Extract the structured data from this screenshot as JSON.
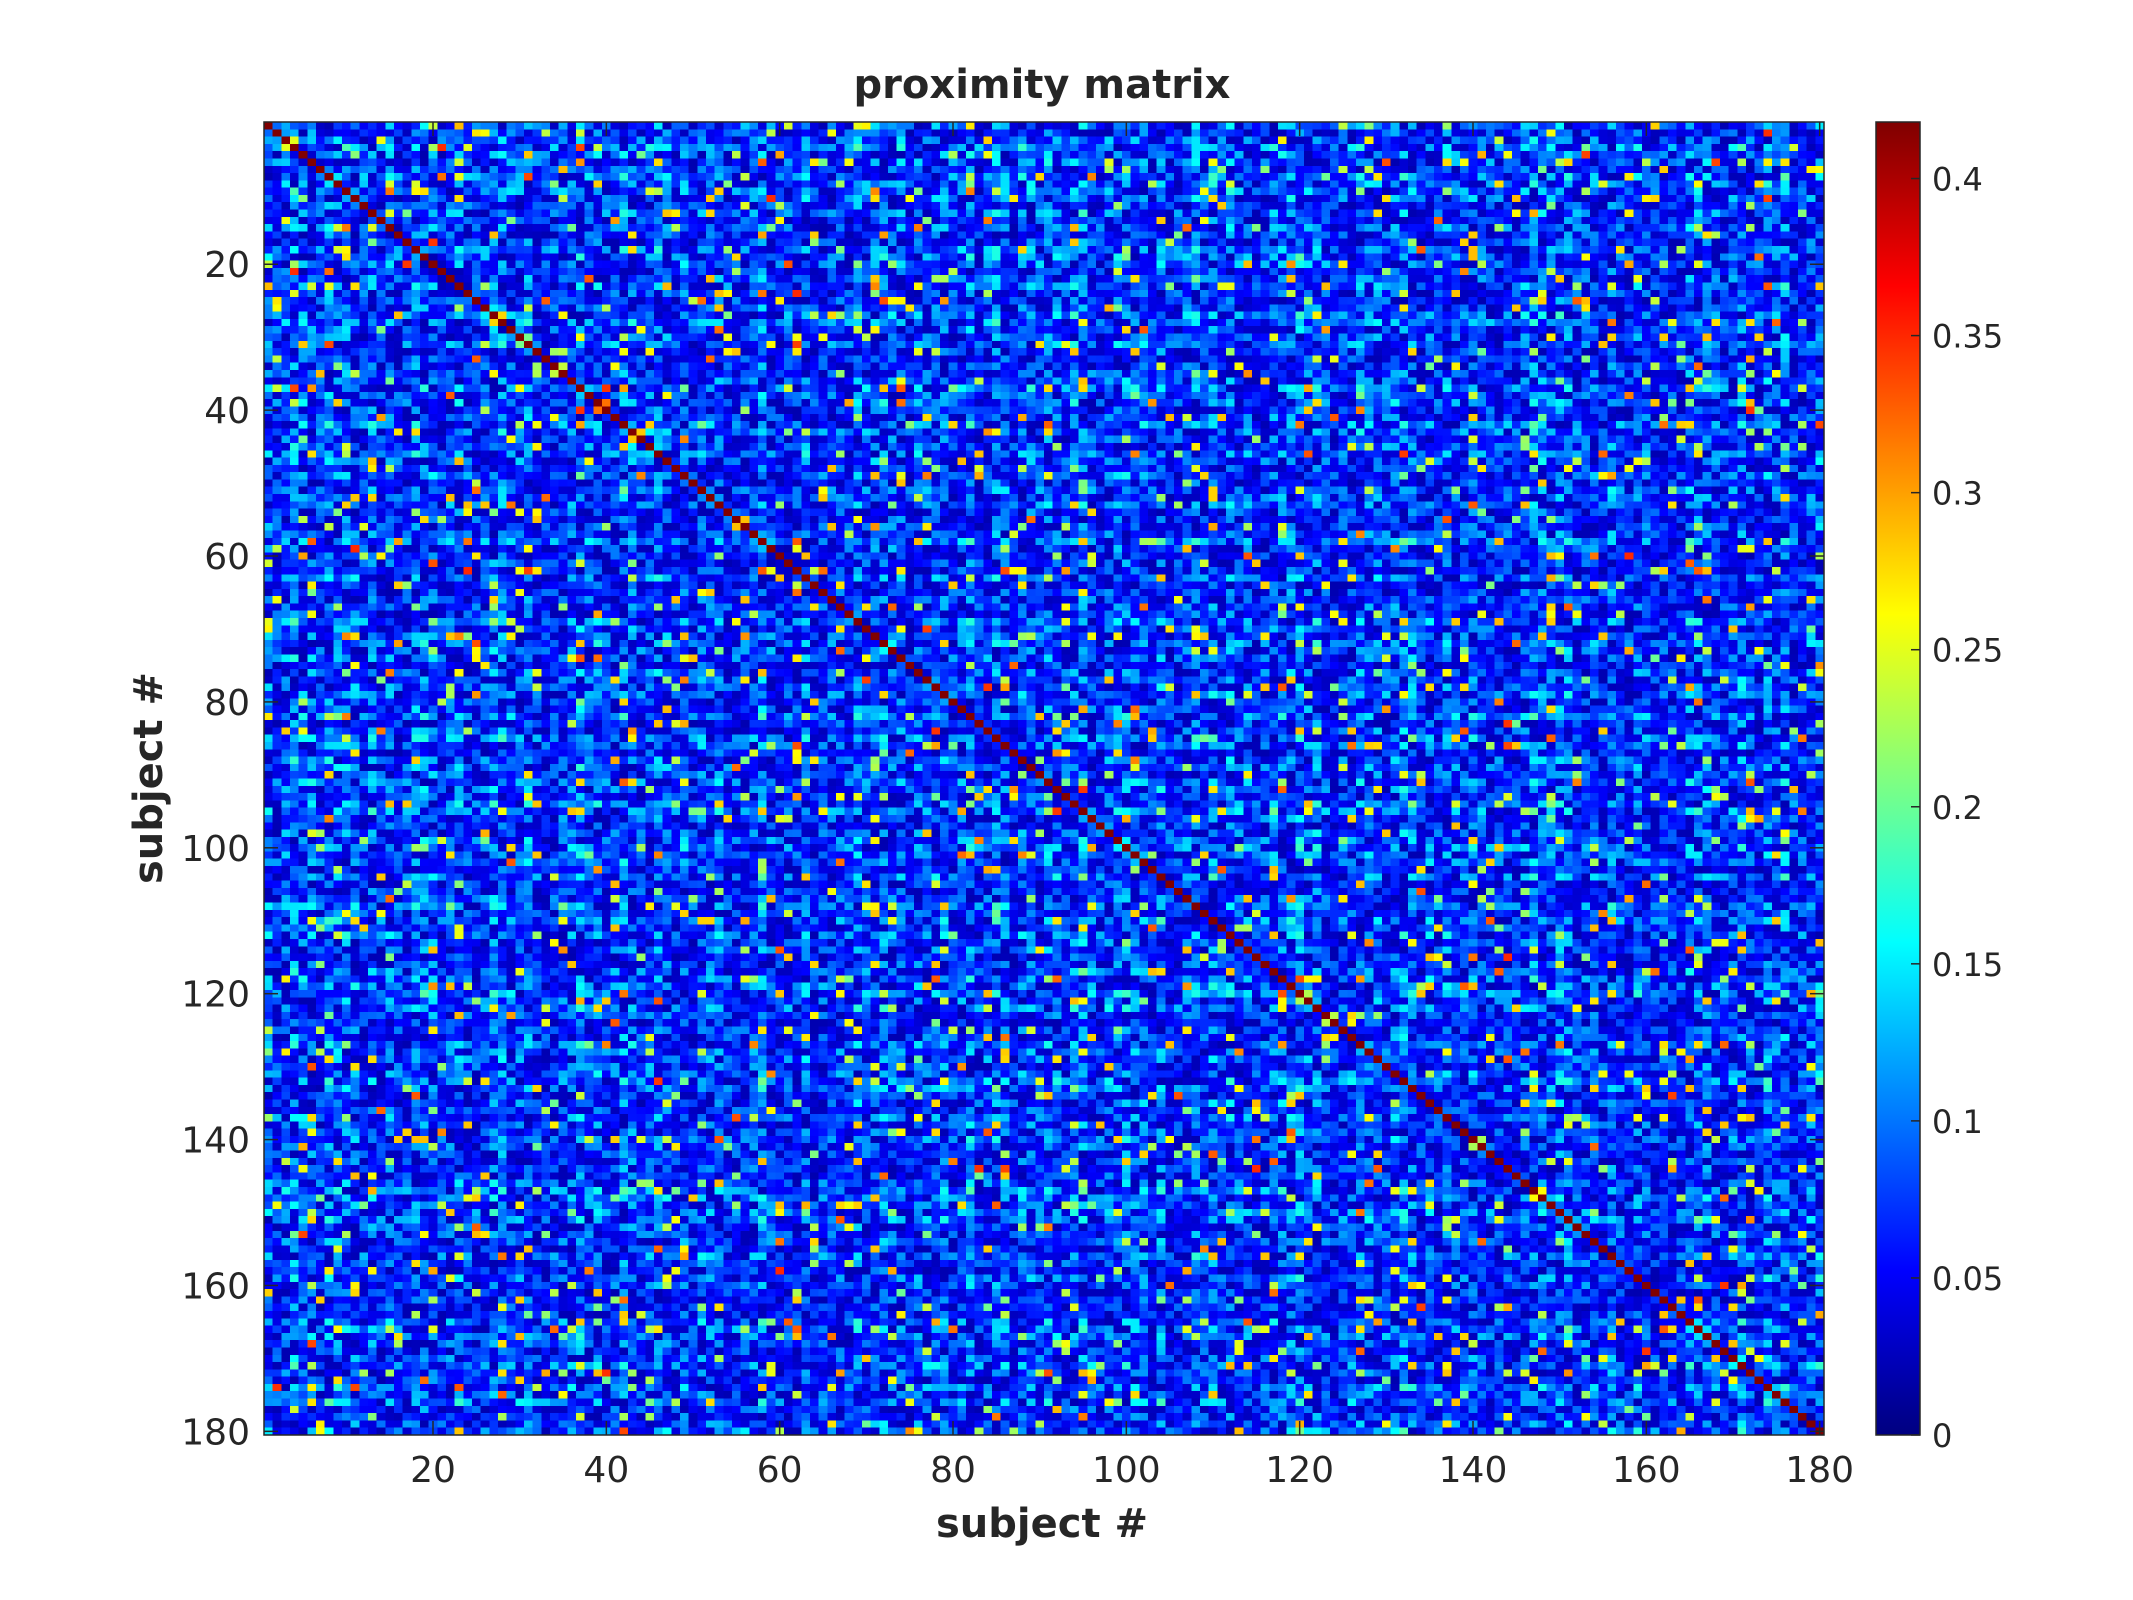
{
  "chart_data": {
    "type": "heatmap",
    "title": "proximity matrix",
    "xlabel": "subject #",
    "ylabel": "subject #",
    "n": 180,
    "x_ticks": [
      20,
      40,
      60,
      80,
      100,
      120,
      140,
      160,
      180
    ],
    "y_ticks": [
      20,
      40,
      60,
      80,
      100,
      120,
      140,
      160,
      180
    ],
    "xlim": [
      0.5,
      180.5
    ],
    "ylim": [
      0.5,
      180.5
    ],
    "y_direction": "reverse",
    "colormap": "jet",
    "clim": [
      0,
      0.418
    ],
    "colorbar_ticks": [
      0,
      0.05,
      0.1,
      0.15,
      0.2,
      0.25,
      0.3,
      0.35,
      0.4
    ],
    "colorbar_tick_labels": [
      "0",
      "0.05",
      "0.1",
      "0.15",
      "0.2",
      "0.25",
      "0.3",
      "0.35",
      "0.4"
    ],
    "diagonal_value": 0.418,
    "off_diagonal_typical_range": [
      0.02,
      0.35
    ],
    "symmetric": true,
    "grid": false,
    "colorbar_position": "right"
  }
}
